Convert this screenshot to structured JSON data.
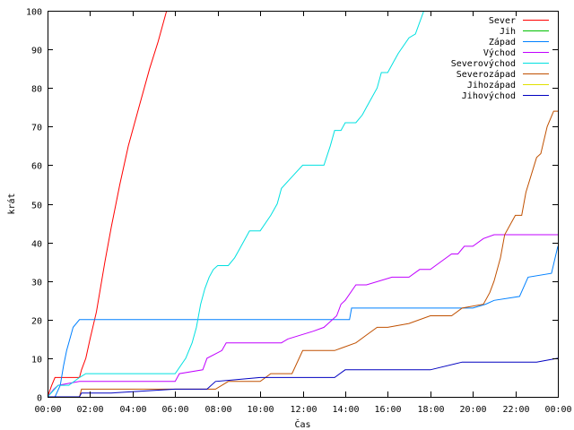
{
  "chart_data": {
    "type": "line",
    "xlabel": "Čas",
    "ylabel": "krát",
    "xlim": [
      0,
      24
    ],
    "ylim": [
      0,
      100
    ],
    "x_ticks": [
      "00:00",
      "02:00",
      "04:00",
      "06:00",
      "08:00",
      "10:00",
      "12:00",
      "14:00",
      "16:00",
      "18:00",
      "20:00",
      "22:00",
      "00:00"
    ],
    "y_ticks": [
      0,
      10,
      20,
      30,
      40,
      50,
      60,
      70,
      80,
      90,
      100
    ],
    "grid": false,
    "legend_position": "top-right",
    "series": [
      {
        "name": "Sever",
        "color": "#ff0000",
        "x": [
          0,
          0.2,
          0.35,
          0.6,
          1.5,
          1.6,
          1.8,
          2.0,
          2.3,
          2.7,
          3.0,
          3.4,
          3.8,
          4.3,
          4.8,
          5.2,
          5.5,
          5.6
        ],
        "y": [
          0,
          3,
          5,
          5,
          5,
          7,
          10,
          15,
          22,
          35,
          44,
          55,
          65,
          75,
          85,
          92,
          98,
          100
        ]
      },
      {
        "name": "Jih",
        "color": "#00c000",
        "x": [],
        "y": []
      },
      {
        "name": "Západ",
        "color": "#0080ff",
        "x": [
          0.35,
          0.6,
          0.75,
          0.9,
          1.05,
          1.2,
          1.5,
          3.0,
          6.0,
          9.0,
          12.0,
          13.5,
          14.2,
          14.3,
          17.0,
          20.0,
          20.6,
          21.0,
          22.2,
          22.6,
          23.7,
          24.0
        ],
        "y": [
          0,
          3,
          8,
          12,
          15,
          18,
          20,
          20,
          20,
          20,
          20,
          20,
          20,
          23,
          23,
          23,
          24,
          25,
          26,
          31,
          32,
          39
        ]
      },
      {
        "name": "Východ",
        "color": "#c000ff",
        "x": [
          0,
          0.3,
          0.5,
          1.5,
          3.0,
          5.0,
          6.0,
          6.2,
          7.3,
          7.5,
          8.2,
          8.4,
          10.0,
          11.0,
          11.3,
          12.5,
          13.0,
          13.2,
          13.6,
          13.8,
          14.0,
          14.5,
          15.0,
          16.2,
          17.0,
          17.5,
          18.0,
          18.5,
          19.0,
          19.3,
          19.6,
          20.0,
          20.5,
          21.0,
          24.0
        ],
        "y": [
          0,
          2,
          3,
          4,
          4,
          4,
          4,
          6,
          7,
          10,
          12,
          14,
          14,
          14,
          15,
          17,
          18,
          19,
          21,
          24,
          25,
          29,
          29,
          31,
          31,
          33,
          33,
          35,
          37,
          37,
          39,
          39,
          41,
          42,
          42
        ]
      },
      {
        "name": "Severovýchod",
        "color": "#00e0e0",
        "x": [
          0,
          0.5,
          1.0,
          1.5,
          1.8,
          2.0,
          4.0,
          5.0,
          5.5,
          6.0,
          6.5,
          6.8,
          7.0,
          7.2,
          7.4,
          7.6,
          7.8,
          8.0,
          8.5,
          8.8,
          9.0,
          9.5,
          10.0,
          10.5,
          10.8,
          11.0,
          11.5,
          12.0,
          12.5,
          13.0,
          13.3,
          13.5,
          13.8,
          14.0,
          14.5,
          14.8,
          15.0,
          15.5,
          15.7,
          16.0,
          16.3,
          16.5,
          17.0,
          17.3,
          17.7,
          17.8
        ],
        "y": [
          0,
          3,
          3,
          5,
          6,
          6,
          6,
          6,
          6,
          6,
          10,
          14,
          18,
          24,
          28,
          31,
          33,
          34,
          34,
          36,
          38,
          43,
          43,
          47,
          50,
          54,
          57,
          60,
          60,
          60,
          65,
          69,
          69,
          71,
          71,
          73,
          75,
          80,
          84,
          84,
          87,
          89,
          93,
          94,
          100,
          100
        ]
      },
      {
        "name": "Severozápad",
        "color": "#c05000",
        "x": [
          0,
          1.5,
          1.6,
          3.0,
          6.0,
          7.0,
          7.9,
          8.5,
          9.0,
          10.0,
          10.5,
          11.5,
          12.0,
          13.5,
          14.5,
          15.0,
          15.5,
          16.0,
          17.0,
          18.0,
          19.0,
          19.5,
          20.5,
          20.8,
          21.0,
          21.3,
          21.5,
          22.0,
          22.3,
          22.5,
          23.0,
          23.2,
          23.5,
          23.8,
          24.0
        ],
        "y": [
          0,
          0,
          2,
          2,
          2,
          2,
          2,
          4,
          4,
          4,
          6,
          6,
          12,
          12,
          14,
          16,
          18,
          18,
          19,
          21,
          21,
          23,
          24,
          27,
          30,
          36,
          42,
          47,
          47,
          53,
          62,
          63,
          70,
          74,
          74
        ]
      },
      {
        "name": "Jihozápad",
        "color": "#e0e000",
        "x": [],
        "y": []
      },
      {
        "name": "Jihovýchod",
        "color": "#0000c0",
        "x": [
          0,
          1.5,
          1.6,
          3.0,
          6.0,
          7.5,
          7.9,
          10.0,
          11.0,
          12.0,
          13.5,
          14.0,
          16.0,
          18.0,
          19.5,
          20.0,
          22.0,
          23.0,
          24.0
        ],
        "y": [
          0,
          0,
          1,
          1,
          2,
          2,
          4,
          5,
          5,
          5,
          5,
          7,
          7,
          7,
          9,
          9,
          9,
          9,
          10
        ]
      }
    ]
  }
}
